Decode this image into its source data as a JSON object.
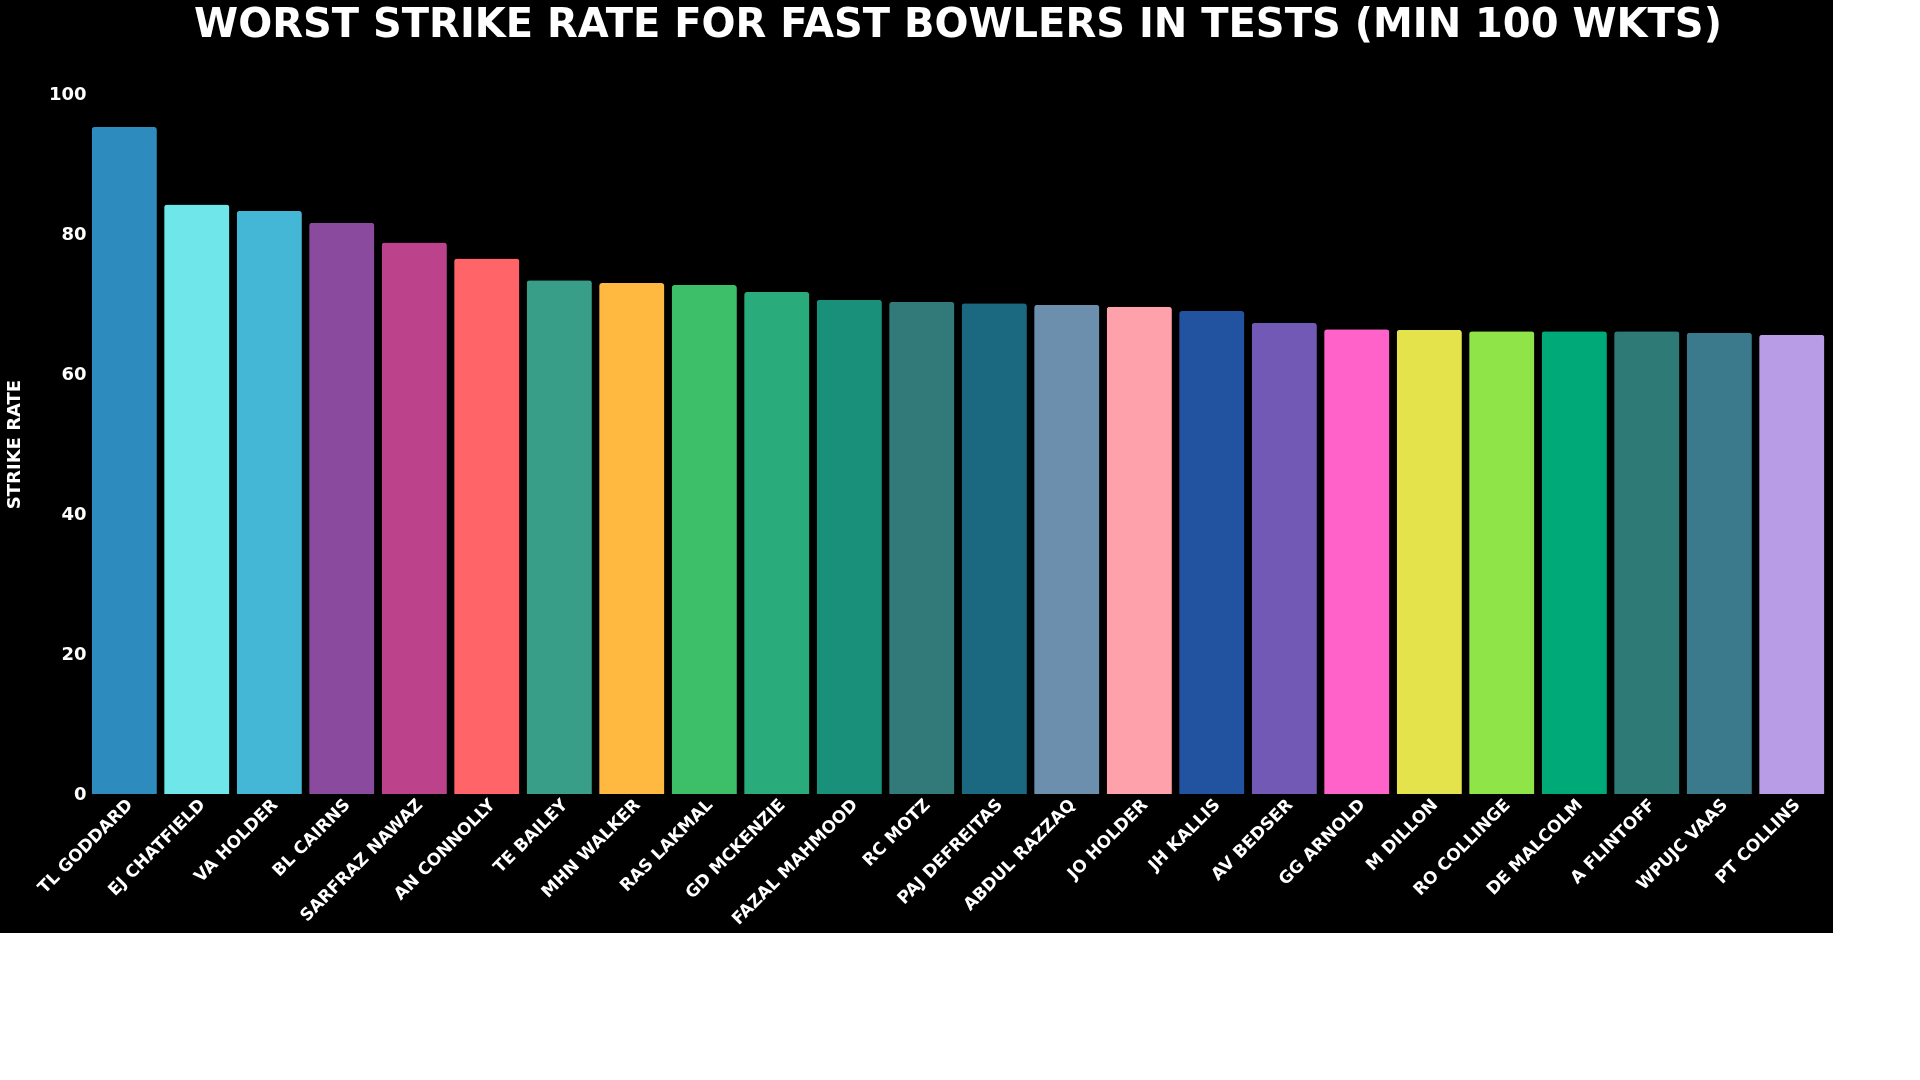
{
  "chart_data": {
    "type": "bar",
    "title": "WORST STRIKE RATE FOR FAST BOWLERS IN TESTS (MIN 100 WKTS)",
    "ylabel": "STRIKE RATE",
    "categories": [
      "TL GODDARD",
      "EJ CHATFIELD",
      "VA HOLDER",
      "BL CAIRNS",
      "SARFRAZ NAWAZ",
      "AN CONNOLLY",
      "TE BAILEY",
      "MHN WALKER",
      "RAS LAKMAL",
      "GD MCKENZIE",
      "FAZAL MAHMOOD",
      "RC MOTZ",
      "PAJ DEFREITAS",
      "ABDUL RAZZAQ",
      "JO HOLDER",
      "JH KALLIS",
      "AV BEDSER",
      "GG ARNOLD",
      "M DILLON",
      "RO COLLINGE",
      "DE MALCOLM",
      "A FLINTOFF",
      "WPUJC VAAS",
      "PT COLLINS"
    ],
    "values": [
      95.3,
      84.2,
      83.3,
      81.6,
      78.8,
      76.5,
      73.4,
      73.0,
      72.7,
      71.7,
      70.6,
      70.3,
      70.1,
      69.9,
      69.6,
      69.0,
      67.3,
      66.4,
      66.3,
      66.1,
      66.1,
      66.1,
      65.9,
      65.6
    ],
    "colors": [
      "#2e8bbd",
      "#6ee6ea",
      "#44b7d6",
      "#8a4a9e",
      "#bd428c",
      "#ff6469",
      "#389e88",
      "#ffb840",
      "#3dbf6a",
      "#2aab7c",
      "#18907a",
      "#327a7a",
      "#1a6980",
      "#6b8fad",
      "#ffa1aa",
      "#2253a0",
      "#7159b5",
      "#ff63c9",
      "#e5e34b",
      "#8fe548",
      "#00aa78",
      "#2e7a76",
      "#3a7a8c",
      "#b89ce6"
    ],
    "ylim": [
      0,
      100
    ],
    "yticks": [
      0,
      20,
      40,
      60,
      80,
      100
    ],
    "grid": false,
    "legend": false
  }
}
